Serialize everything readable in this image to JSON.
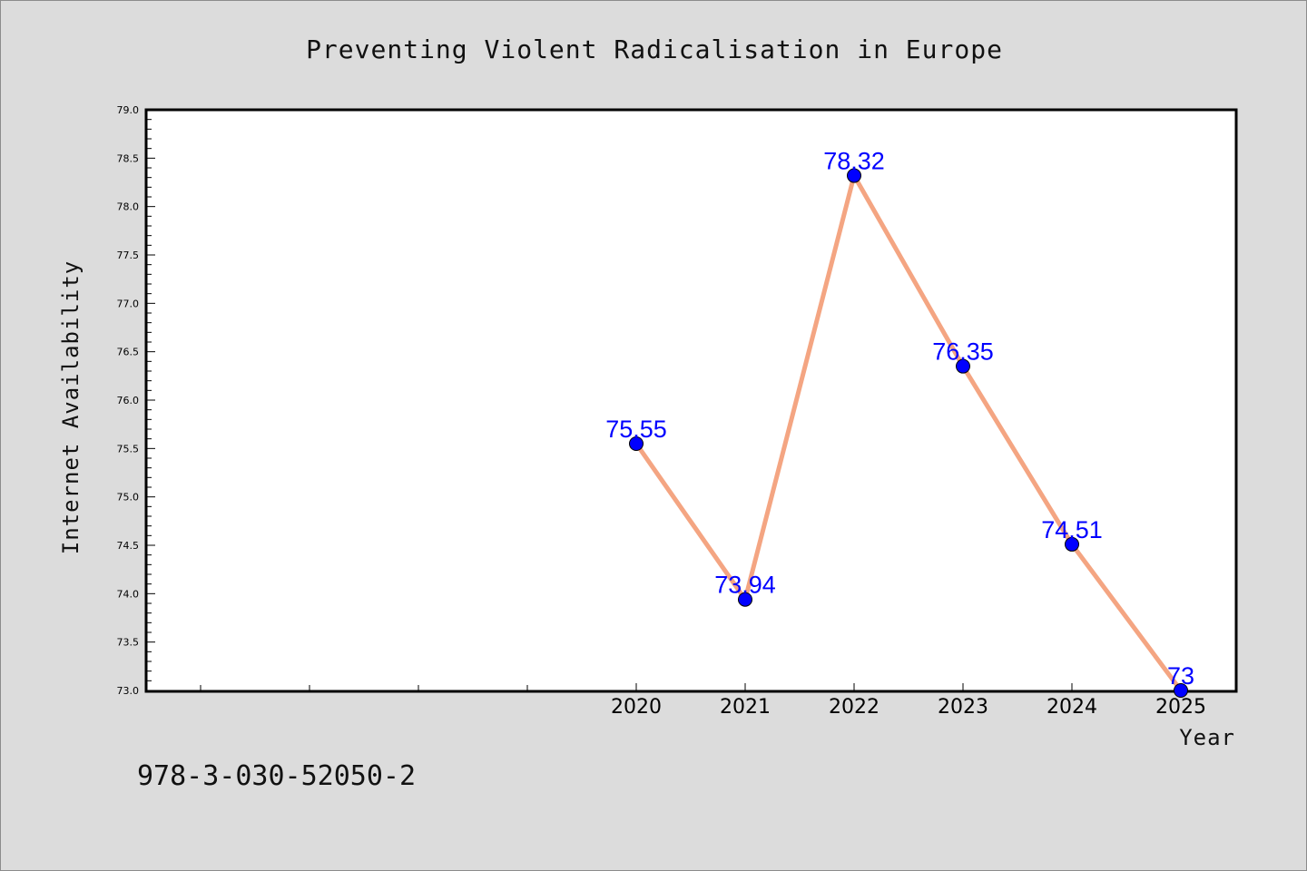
{
  "chart_data": {
    "type": "line",
    "title": "Preventing Violent Radicalisation in Europe",
    "xlabel": "Year",
    "ylabel": "Internet Availability",
    "x": [
      2020,
      2021,
      2022,
      2023,
      2024,
      2025
    ],
    "series": [
      {
        "values": [
          75.55,
          73.94,
          78.32,
          76.35,
          74.51,
          73
        ],
        "labels": [
          "75.55",
          "73.94",
          "78.32",
          "76.35",
          "74.51",
          "73"
        ],
        "line_color": "#f4a582",
        "marker_color": "#0000ff"
      }
    ],
    "xlim": [
      2015.5,
      2025.5
    ],
    "ylim": [
      73.0,
      79.0
    ],
    "yticks": [
      "73.0",
      "73.5",
      "74.0",
      "74.5",
      "75.0",
      "75.5",
      "76.0",
      "76.5",
      "77.0",
      "77.5",
      "78.0",
      "78.5",
      "79.0"
    ],
    "xticks_labeled": [
      "2020",
      "2021",
      "2022",
      "2023",
      "2024",
      "2025"
    ],
    "xticks_unlabeled": [
      2016,
      2017,
      2018,
      2019
    ],
    "grid": false,
    "legend": false
  },
  "footer": {
    "isbn": "978-3-030-52050-2"
  },
  "colors": {
    "background": "#dcdcdc",
    "plot_background": "#ffffff",
    "axes": "#000000",
    "data_label": "#0000ff"
  }
}
